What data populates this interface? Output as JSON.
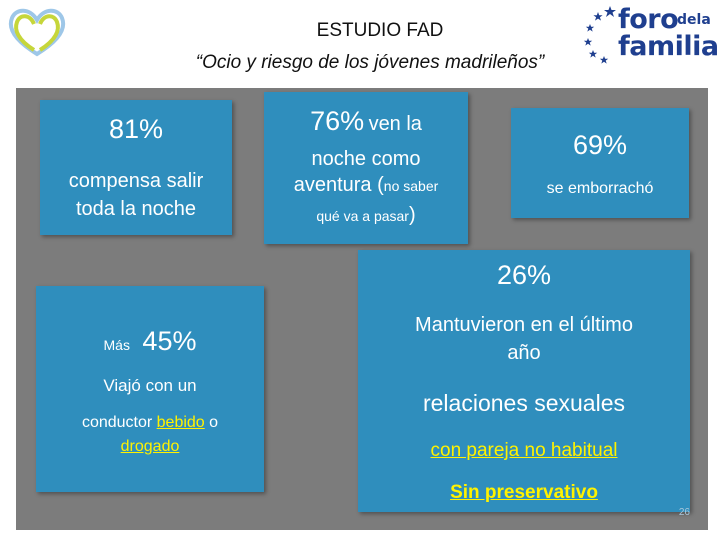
{
  "header": {
    "title": "ESTUDIO FAD",
    "subtitle": "“Ocio y riesgo de los jóvenes madrileños”"
  },
  "logo_right": {
    "line1": "foro",
    "line2": "dela",
    "line3": "familia",
    "color": "#1f3f8f"
  },
  "colors": {
    "box": "#2f8ebd",
    "panel": "#7c7c7c",
    "highlight": "#fff200"
  },
  "box1": {
    "pct": "81%",
    "text1": "compensa salir",
    "text2": "toda la noche"
  },
  "box2": {
    "pct": "76%",
    "text1": "ven la",
    "text2": "noche como",
    "text3": "aventura (",
    "text4": "no saber",
    "text5": "qué va a pasar",
    "text6": ")"
  },
  "box3": {
    "pct": "69%",
    "text": "se emborrachó"
  },
  "box4": {
    "prefix": "Más",
    "pct": "45%",
    "text1": "Viajó con un",
    "text2": "conductor",
    "text3": "bebido",
    "text4": "o",
    "text5": "drogado"
  },
  "box5": {
    "pct": "26%",
    "text1": "Mantuvieron en el último",
    "text2": "año",
    "text3": "relaciones sexuales",
    "text4": "con pareja no habitual",
    "text5": "Sin preservativo"
  },
  "page_number": "26"
}
